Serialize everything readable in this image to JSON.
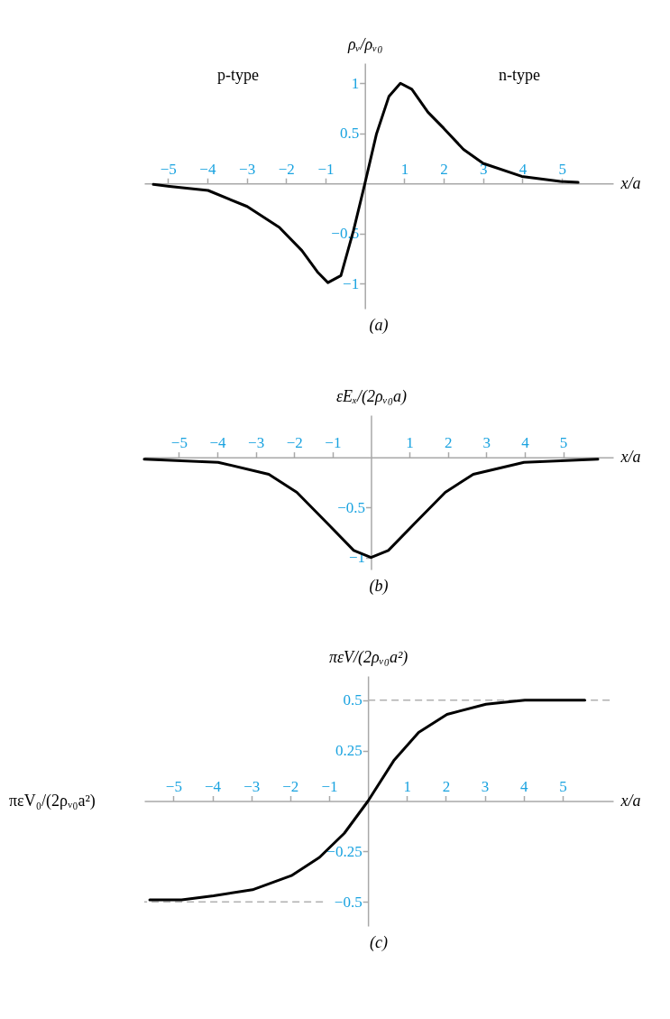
{
  "chart_data": [
    {
      "type": "line",
      "title": "(a)",
      "xlabel": "x/a",
      "ylabel": "ρᵥ/ρᵥ₀",
      "xlim": [
        -5.6,
        6.3
      ],
      "ylim": [
        -1.25,
        1.2
      ],
      "xticks": [
        -5,
        -4,
        -3,
        -2,
        -1,
        1,
        2,
        3,
        4,
        5
      ],
      "yticks": [
        -1,
        -0.5,
        0.5,
        1
      ],
      "line_style": "solid",
      "marker": "none",
      "series": [
        {
          "color": "#000000",
          "x": [
            -5.37,
            -4.96,
            -3.98,
            -2.99,
            -2.17,
            -1.6,
            -1.19,
            -0.94,
            -0.61,
            -0.29,
            0,
            0.29,
            0.61,
            0.9,
            1.19,
            1.6,
            2.0,
            2.5,
            3.0,
            3.98,
            4.96,
            5.41
          ],
          "values": [
            -0.01,
            -0.03,
            -0.07,
            -0.23,
            -0.44,
            -0.67,
            -0.89,
            -0.99,
            -0.92,
            -0.47,
            0,
            0.49,
            0.87,
            1.0,
            0.94,
            0.71,
            0.55,
            0.34,
            0.2,
            0.07,
            0.02,
            0.01
          ]
        }
      ],
      "annotations": [
        "p-type",
        "n-type"
      ]
    },
    {
      "type": "line",
      "title": "(b)",
      "xlabel": "x/a",
      "ylabel": "εEₓ/(2ρᵥ₀a)",
      "xlim": [
        -5.9,
        6.3
      ],
      "ylim": [
        -1.12,
        0.42
      ],
      "xticks": [
        -5,
        -4,
        -3,
        -2,
        -1,
        1,
        2,
        3,
        4,
        5
      ],
      "yticks": [
        -1,
        -0.5
      ],
      "line_style": "solid",
      "marker": "none",
      "series": [
        {
          "color": "#000000",
          "x": [
            -5.9,
            -3.98,
            -2.66,
            -1.93,
            -1.11,
            -0.45,
            0,
            0.45,
            1.11,
            1.93,
            2.66,
            3.98,
            5.9
          ],
          "values": [
            -0.02,
            -0.05,
            -0.17,
            -0.35,
            -0.67,
            -0.93,
            -1.0,
            -0.93,
            -0.67,
            -0.35,
            -0.17,
            -0.05,
            -0.02
          ]
        }
      ]
    },
    {
      "type": "line",
      "title": "(c)",
      "xlabel": "x/a",
      "ylabel": "πεV/(2ρᵥ₀a²)",
      "xlim": [
        -5.75,
        6.3
      ],
      "ylim": [
        -0.62,
        0.62
      ],
      "xticks": [
        -5,
        -4,
        -3,
        -2,
        -1,
        1,
        2,
        3,
        4,
        5
      ],
      "yticks": [
        -0.5,
        -0.25,
        0.25,
        0.5
      ],
      "line_style": "solid",
      "marker": "none",
      "series": [
        {
          "color": "#000000",
          "x": [
            -5.61,
            -4.79,
            -3.97,
            -2.97,
            -1.97,
            -1.25,
            -0.61,
            0,
            0.66,
            1.3,
            2.03,
            3.03,
            4.03,
            5.57
          ],
          "values": [
            -0.49,
            -0.49,
            -0.47,
            -0.44,
            -0.37,
            -0.28,
            -0.16,
            0,
            0.2,
            0.34,
            0.43,
            0.48,
            0.5,
            0.5
          ]
        }
      ],
      "ref_lines": [
        {
          "axis": "y",
          "value": 0.5,
          "color": "#b0b0b0",
          "line_style": "dashed"
        },
        {
          "axis": "y",
          "value": -0.5,
          "color": "#b0b0b0",
          "line_style": "dashed"
        }
      ],
      "annotations": [
        "πεV₀/(2ρᵥ₀a²)"
      ]
    }
  ]
}
